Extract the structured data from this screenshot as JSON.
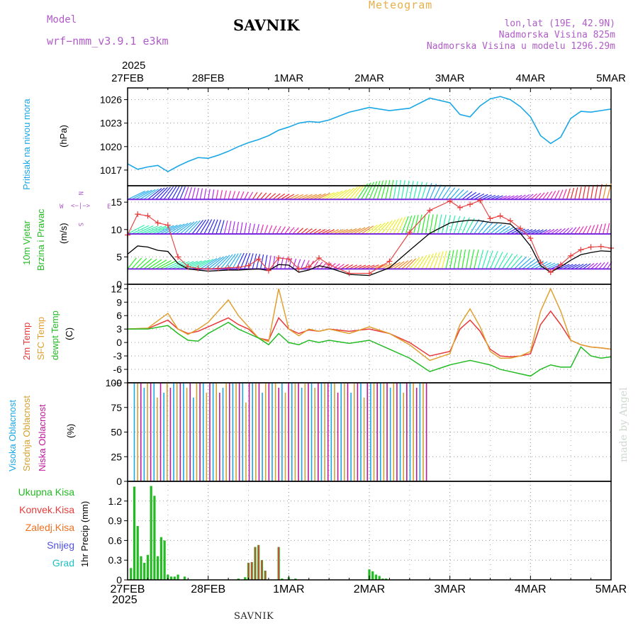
{
  "header": {
    "model_label": "Model",
    "model_name": "wrf−nmm_v3.9.1  e3km",
    "station": "SAVNIK",
    "product": "Meteogram",
    "lonlat": "lon,lat (19E, 42.9N)",
    "elevation": "Nadmorska Visina 825m",
    "model_elevation": "Nadmorska Visina u modelu 1296.29m",
    "year_top": "2025",
    "year_bottom": "2025",
    "footer": "SAVNIK",
    "watermark": "made by Angel"
  },
  "colors": {
    "pressure": "#1aa7e6",
    "temp2m": "#e83a3a",
    "sfc": "#e0a030",
    "dew": "#22bb22",
    "high_cloud": "#1aa7e6",
    "mid_cloud": "#d4a030",
    "low_cloud": "#c0189a",
    "total_rain": "#22bb22",
    "conv_rain": "#e83a3a",
    "frz_rain": "#f07020",
    "snow": "#5050e0",
    "graupel": "#20c0c0"
  },
  "panel_labels": {
    "pressure": [
      "Pritisak na nivou mora",
      "(hPa)"
    ],
    "wind": [
      "10m Vjetar",
      "Brzina i Pravac",
      "(m/s)"
    ],
    "wind_rose": {
      "n": "N",
      "s": "S",
      "e": "E",
      "w": "W",
      "arrow": "<−|−>"
    },
    "temp": [
      "2m Temp",
      "SFC Temp",
      "dewpt Temp",
      "(C)"
    ],
    "cloud": [
      "Visoka Oblacnost",
      "Srednja Oblacnost",
      "Niska Oblacnost",
      "(%)"
    ],
    "precip_legend": [
      "Ukupna Kisa",
      "Konvek.Kisa",
      "Zaledj.Kisa",
      "Snijeg",
      "Grad"
    ],
    "precip_unit": "1hr Precip (mm)"
  },
  "chart_data": {
    "type": "line",
    "x_ticks": [
      "27FEB",
      "28FEB",
      "1MAR",
      "2MAR",
      "3MAR",
      "4MAR",
      "5MAR"
    ],
    "x_range_hours": [
      0,
      144
    ],
    "panels": [
      {
        "name": "pressure",
        "ylim": [
          1015,
          1027.5
        ],
        "yticks": [
          1017,
          1020,
          1023,
          1026
        ],
        "series": [
          {
            "name": "Pritisak",
            "x": [
              0,
              3,
              6,
              9,
              12,
              15,
              18,
              21,
              24,
              27,
              30,
              33,
              36,
              39,
              42,
              45,
              48,
              51,
              54,
              57,
              60,
              66,
              72,
              78,
              84,
              90,
              96,
              99,
              102,
              105,
              108,
              111,
              114,
              117,
              120,
              123,
              126,
              129,
              132,
              135,
              138,
              141,
              144
            ],
            "values": [
              1017.8,
              1017.1,
              1017.4,
              1017.6,
              1016.8,
              1017.5,
              1018.1,
              1018.6,
              1018.5,
              1018.9,
              1019.4,
              1020.0,
              1020.5,
              1020.9,
              1021.4,
              1022.1,
              1022.5,
              1023.0,
              1023.2,
              1023.1,
              1023.4,
              1024.4,
              1025.0,
              1024.6,
              1024.9,
              1026.2,
              1025.6,
              1024.1,
              1023.8,
              1025.2,
              1026.1,
              1026.4,
              1026.0,
              1025.1,
              1023.8,
              1021.4,
              1020.4,
              1021.2,
              1023.6,
              1024.5,
              1024.4,
              1024.6,
              1024.8
            ]
          }
        ]
      },
      {
        "name": "wind",
        "ylim": [
          0,
          18
        ],
        "yticks": [
          0,
          5,
          10,
          15
        ],
        "series": [
          {
            "name": "Brzina",
            "x": [
              0,
              3,
              6,
              9,
              12,
              15,
              18,
              21,
              24,
              27,
              30,
              33,
              36,
              39,
              42,
              45,
              48,
              51,
              54,
              57,
              60,
              66,
              72,
              78,
              84,
              90,
              96,
              99,
              102,
              105,
              108,
              111,
              114,
              117,
              120,
              123,
              126,
              129,
              132,
              135,
              138,
              141,
              144
            ],
            "values": [
              5.5,
              7.0,
              6.8,
              6.2,
              6.0,
              3.8,
              2.8,
              2.6,
              2.4,
              2.5,
              2.6,
              2.6,
              2.7,
              2.8,
              2.5,
              3.6,
              3.5,
              2.2,
              2.6,
              3.4,
              3.0,
              1.8,
              1.6,
              3.0,
              6.2,
              9.3,
              11.2,
              11.5,
              11.7,
              11.6,
              11.3,
              11.2,
              11.0,
              9.3,
              7.0,
              3.4,
              2.2,
              3.2,
              4.4,
              5.4,
              5.8,
              6.1,
              6.0
            ]
          },
          {
            "name": "Udari",
            "x": [
              0,
              3,
              6,
              9,
              12,
              15,
              18,
              21,
              24,
              27,
              30,
              33,
              36,
              39,
              42,
              45,
              48,
              51,
              54,
              57,
              60,
              66,
              72,
              78,
              84,
              90,
              96,
              99,
              102,
              105,
              108,
              111,
              114,
              117,
              120,
              123,
              126,
              129,
              132,
              135,
              138,
              141,
              144
            ],
            "values": [
              9.0,
              12.8,
              12.5,
              11.2,
              10.8,
              5.0,
              3.2,
              2.9,
              2.8,
              2.9,
              3.0,
              3.1,
              3.4,
              4.6,
              2.5,
              4.8,
              4.6,
              2.8,
              3.2,
              4.8,
              3.6,
              2.0,
              2.0,
              4.2,
              9.5,
              13.5,
              15.2,
              14.0,
              14.6,
              15.3,
              12.0,
              12.5,
              11.6,
              10.2,
              8.4,
              4.0,
              2.2,
              3.6,
              5.2,
              6.3,
              6.8,
              6.9,
              6.6
            ]
          }
        ]
      },
      {
        "name": "temp",
        "ylim": [
          -9,
          13
        ],
        "yticks": [
          -9,
          -6,
          -3,
          0,
          3,
          6,
          9,
          12
        ],
        "series": [
          {
            "name": "2m Temp",
            "x": [
              0,
              6,
              12,
              15,
              18,
              21,
              24,
              30,
              33,
              36,
              39,
              42,
              45,
              48,
              51,
              54,
              57,
              60,
              66,
              72,
              78,
              84,
              90,
              96,
              99,
              102,
              105,
              108,
              111,
              114,
              117,
              120,
              123,
              126,
              129,
              132,
              135,
              138,
              141,
              144
            ],
            "values": [
              3.0,
              3.1,
              5.0,
              3.0,
              2.0,
              2.5,
              3.5,
              5.5,
              4.0,
              3.0,
              1.0,
              0.5,
              5.5,
              3.0,
              2.0,
              2.8,
              2.5,
              3.0,
              2.5,
              3.0,
              2.0,
              0.0,
              -3.0,
              -2.0,
              3.0,
              5.0,
              2.5,
              -1.5,
              -3.0,
              -3.2,
              -3.0,
              -2.5,
              4.0,
              7.0,
              4.0,
              0.5,
              -0.5,
              -1.0,
              -1.2,
              -1.5
            ]
          },
          {
            "name": "SFC Temp",
            "x": [
              0,
              6,
              12,
              15,
              18,
              21,
              24,
              30,
              33,
              36,
              39,
              42,
              45,
              48,
              51,
              54,
              57,
              60,
              66,
              72,
              78,
              84,
              90,
              96,
              99,
              102,
              105,
              108,
              111,
              114,
              117,
              120,
              123,
              126,
              129,
              132,
              135,
              138,
              141,
              144
            ],
            "values": [
              3.0,
              3.2,
              6.5,
              3.0,
              1.8,
              3.0,
              4.5,
              9.5,
              6.0,
              3.5,
              1.0,
              0.2,
              12.0,
              3.0,
              1.5,
              3.0,
              2.5,
              3.0,
              2.0,
              3.5,
              2.0,
              -0.5,
              -4.0,
              -2.5,
              4.0,
              7.5,
              3.5,
              -2.0,
              -3.5,
              -3.5,
              -3.0,
              -2.0,
              7.0,
              12.0,
              7.0,
              0.5,
              -0.5,
              -1.0,
              -1.2,
              -1.5
            ]
          },
          {
            "name": "dewpt Temp",
            "x": [
              0,
              6,
              12,
              15,
              18,
              21,
              24,
              30,
              33,
              36,
              39,
              42,
              45,
              48,
              51,
              54,
              57,
              60,
              66,
              72,
              78,
              84,
              90,
              96,
              99,
              102,
              105,
              108,
              111,
              114,
              117,
              120,
              123,
              126,
              129,
              132,
              135,
              138,
              141,
              144
            ],
            "values": [
              3.0,
              3.0,
              3.8,
              2.0,
              0.5,
              0.3,
              2.0,
              4.5,
              3.0,
              2.0,
              1.0,
              -0.5,
              2.0,
              0.0,
              -0.5,
              0.5,
              0.0,
              0.5,
              -0.2,
              0.5,
              -1.5,
              -3.5,
              -6.5,
              -5.0,
              -4.5,
              -4.0,
              -4.5,
              -5.0,
              -6.0,
              -6.5,
              -7.0,
              -7.5,
              -6.0,
              -5.0,
              -5.5,
              -5.5,
              -1.0,
              -3.0,
              -3.5,
              -3.2
            ]
          }
        ]
      },
      {
        "name": "cloud",
        "ylim": [
          0,
          100
        ],
        "yticks": [
          0,
          25,
          50,
          75,
          100
        ],
        "active_until_hours": 90,
        "series": [
          {
            "name": "Visoka Oblacnost",
            "values": [
              100,
              95,
              100,
              90,
              100,
              100,
              85,
              100,
              100,
              95,
              100,
              100,
              100,
              90,
              100,
              100,
              100,
              95,
              100,
              100,
              100,
              100,
              90,
              100,
              100,
              100,
              95,
              100,
              100,
              100
            ]
          },
          {
            "name": "Srednja Oblacnost",
            "values": [
              100,
              100,
              85,
              100,
              100,
              95,
              100,
              90,
              100,
              100,
              100,
              80,
              100,
              100,
              100,
              90,
              100,
              100,
              95,
              100,
              100,
              100,
              100,
              85,
              100,
              100,
              100,
              90,
              100,
              100
            ]
          },
          {
            "name": "Niska Oblacnost",
            "values": [
              100,
              100,
              100,
              95,
              100,
              100,
              100,
              100,
              90,
              100,
              100,
              100,
              100,
              100,
              95,
              100,
              100,
              100,
              100,
              100,
              90,
              100,
              100,
              100,
              100,
              100,
              100,
              100,
              95,
              100
            ]
          }
        ]
      },
      {
        "name": "precip",
        "type": "bar",
        "ylim": [
          0,
          1.5
        ],
        "yticks": [
          0,
          0.3,
          0.6,
          0.9,
          1.2
        ],
        "series": [
          {
            "name": "Ukupna Kisa",
            "x": [
              1,
              2,
              3,
              4,
              5,
              6,
              7,
              8,
              9,
              10,
              11,
              12,
              13,
              14,
              15,
              17,
              33,
              35,
              36,
              37,
              38,
              39,
              40,
              41,
              42,
              43,
              44,
              45,
              46,
              47,
              48,
              49,
              50,
              51,
              52,
              53,
              54,
              55,
              56,
              57,
              58,
              59,
              60,
              61,
              62,
              63,
              64,
              65,
              66,
              72,
              73,
              74,
              75,
              76,
              77,
              78
            ],
            "values": [
              0.18,
              1.42,
              0.82,
              0.36,
              0.26,
              0.38,
              1.43,
              1.28,
              0.36,
              0.65,
              0.6,
              0.08,
              0.05,
              0.05,
              0.08,
              0.05,
              0.02,
              0.04,
              0.26,
              0.27,
              0.5,
              0.53,
              0.3,
              0.14,
              0.0,
              0.0,
              0.0,
              0.5,
              0.02,
              0.0,
              0.04,
              0.0,
              0.02,
              0.0,
              0.0,
              0.0,
              0.0,
              0.0,
              0.0,
              0.0,
              0.0,
              0.0,
              0.0,
              0.0,
              0.0,
              0.0,
              0.0,
              0.0,
              0.0,
              0.16,
              0.13,
              0.08,
              0.06,
              0.02,
              0.02,
              0.0
            ]
          },
          {
            "name": "Konvek.Kisa",
            "x": [
              36,
              37,
              38,
              39,
              40,
              41,
              45
            ],
            "values": [
              0.26,
              0.27,
              0.5,
              0.53,
              0.3,
              0.14,
              0.5
            ]
          }
        ]
      }
    ]
  }
}
